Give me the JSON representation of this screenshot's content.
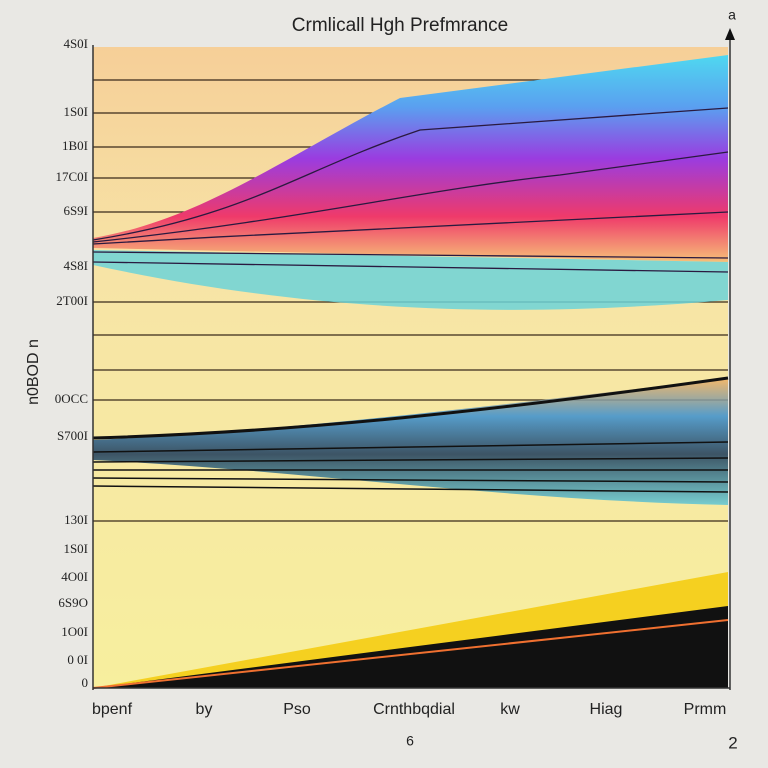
{
  "title": "Crmlicall Hgh Prefmrance",
  "corner_label": "a",
  "y_axis_title": "n0BOD n",
  "y_axis_labels": [
    "4S0I",
    "1S0I",
    "1B0I",
    "17C0I",
    "6S9I",
    "4S8I",
    "2T00I",
    "0OCC",
    "S700I",
    "130I",
    "1S0I",
    "4O0I",
    "6S9O",
    "1O0I",
    "0 0I",
    "0"
  ],
  "x_axis_labels": [
    "bpenf",
    "by",
    "Pso",
    "Crnthbqdial",
    "kw",
    "Hiag",
    "Prmm"
  ],
  "footer_center": "6",
  "footer_right": "2"
}
